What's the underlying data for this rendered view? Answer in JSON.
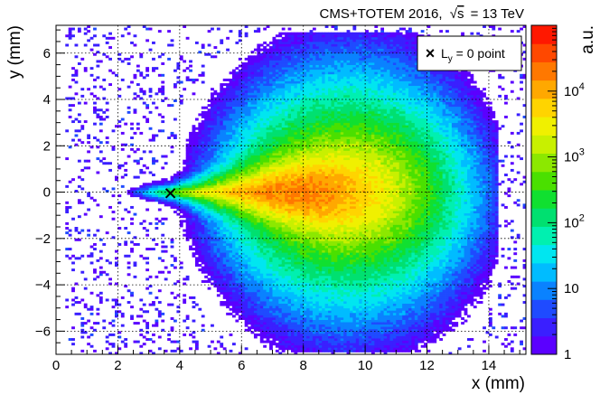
{
  "header": {
    "experiment": "CMS+TOTEM 2016,",
    "sqrt_symbol": "√",
    "s_var": "s",
    "energy": "= 13 TeV"
  },
  "chart_data": {
    "type": "heatmap",
    "xlabel": "x (mm)",
    "ylabel": "y (mm)",
    "zlabel": "a.u.",
    "xlim": [
      0,
      15.2
    ],
    "ylim": [
      -7,
      7.2
    ],
    "zlim": [
      1,
      100000
    ],
    "z_scale": "log",
    "grid": true,
    "x_ticks": [
      0,
      2,
      4,
      6,
      8,
      10,
      12,
      14
    ],
    "x_tick_labels": [
      "0",
      "2",
      "4",
      "6",
      "8",
      "10",
      "12",
      "14"
    ],
    "y_ticks": [
      -6,
      -4,
      -2,
      0,
      2,
      4,
      6
    ],
    "y_tick_labels": [
      "−6",
      "−4",
      "−2",
      "0",
      "2",
      "4",
      "6"
    ],
    "colorbar_ticks": [
      {
        "value": 1,
        "base": "1",
        "exp": ""
      },
      {
        "value": 10,
        "base": "10",
        "exp": ""
      },
      {
        "value": 100,
        "base": "10",
        "exp": "2"
      },
      {
        "value": 1000,
        "base": "10",
        "exp": "3"
      },
      {
        "value": 10000,
        "base": "10",
        "exp": "4"
      }
    ],
    "colormap": [
      "#5b00ff",
      "#3a1fff",
      "#1f4bff",
      "#0a82ff",
      "#00bcff",
      "#00e6f0",
      "#00f0b0",
      "#00e070",
      "#10e030",
      "#4ae000",
      "#8ce800",
      "#c8f000",
      "#f0f000",
      "#ffd400",
      "#ffa800",
      "#ff7800",
      "#ff4800",
      "#ff1800"
    ],
    "marker": {
      "x": 3.7,
      "y": -0.05,
      "symbol": "×",
      "label_main": "L",
      "label_sub": "y",
      "label_rest": " = 0 point"
    },
    "legend_position": "top-right",
    "distribution_note_values": {
      "dense_region": {
        "x": [
          1.8,
          7.2
        ],
        "y": [
          -0.3,
          0.3
        ]
      },
      "x_extent": [
        0.8,
        14.5
      ],
      "y_extent": [
        -7,
        7.2
      ]
    }
  }
}
